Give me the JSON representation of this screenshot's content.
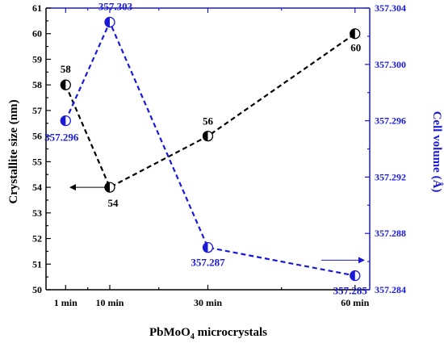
{
  "chart_data": {
    "type": "line",
    "categories": [
      "1 min",
      "10 min",
      "30 min",
      "60 min"
    ],
    "x_positions": [
      1,
      10,
      30,
      60
    ],
    "xlabel": "PbMoO",
    "xlabel_sub": "4",
    "xlabel_tail": " microcrystals",
    "ylabel_left": "Crystallite size (nm)",
    "ylabel_right": "Cell volume (Å)",
    "ylim_left": [
      50,
      61
    ],
    "ylim_right": [
      357.284,
      357.304
    ],
    "yticks_left": [
      "50",
      "51",
      "52",
      "53",
      "54",
      "55",
      "56",
      "57",
      "58",
      "59",
      "60",
      "61"
    ],
    "yticks_right": [
      "357.284",
      "357.288",
      "357.292",
      "357.296",
      "357.300",
      "357.304"
    ],
    "series": [
      {
        "axis": "left",
        "color": "#000000",
        "line_style": "dashed",
        "values": [
          58,
          54,
          56,
          60
        ],
        "labels": [
          "58",
          "54",
          "56",
          "60"
        ]
      },
      {
        "axis": "right",
        "color": "#1a1ad6",
        "line_style": "dashed",
        "values": [
          357.296,
          357.303,
          357.287,
          357.285
        ],
        "labels": [
          "357.296",
          "357.303",
          "357.287",
          "357.285"
        ]
      }
    ],
    "annotations": [
      {
        "type": "arrow",
        "direction": "left",
        "axis": "left",
        "color": "#000000"
      },
      {
        "type": "arrow",
        "direction": "right",
        "axis": "right",
        "color": "#1a1ad6"
      }
    ],
    "grid": false,
    "legend": "none"
  }
}
